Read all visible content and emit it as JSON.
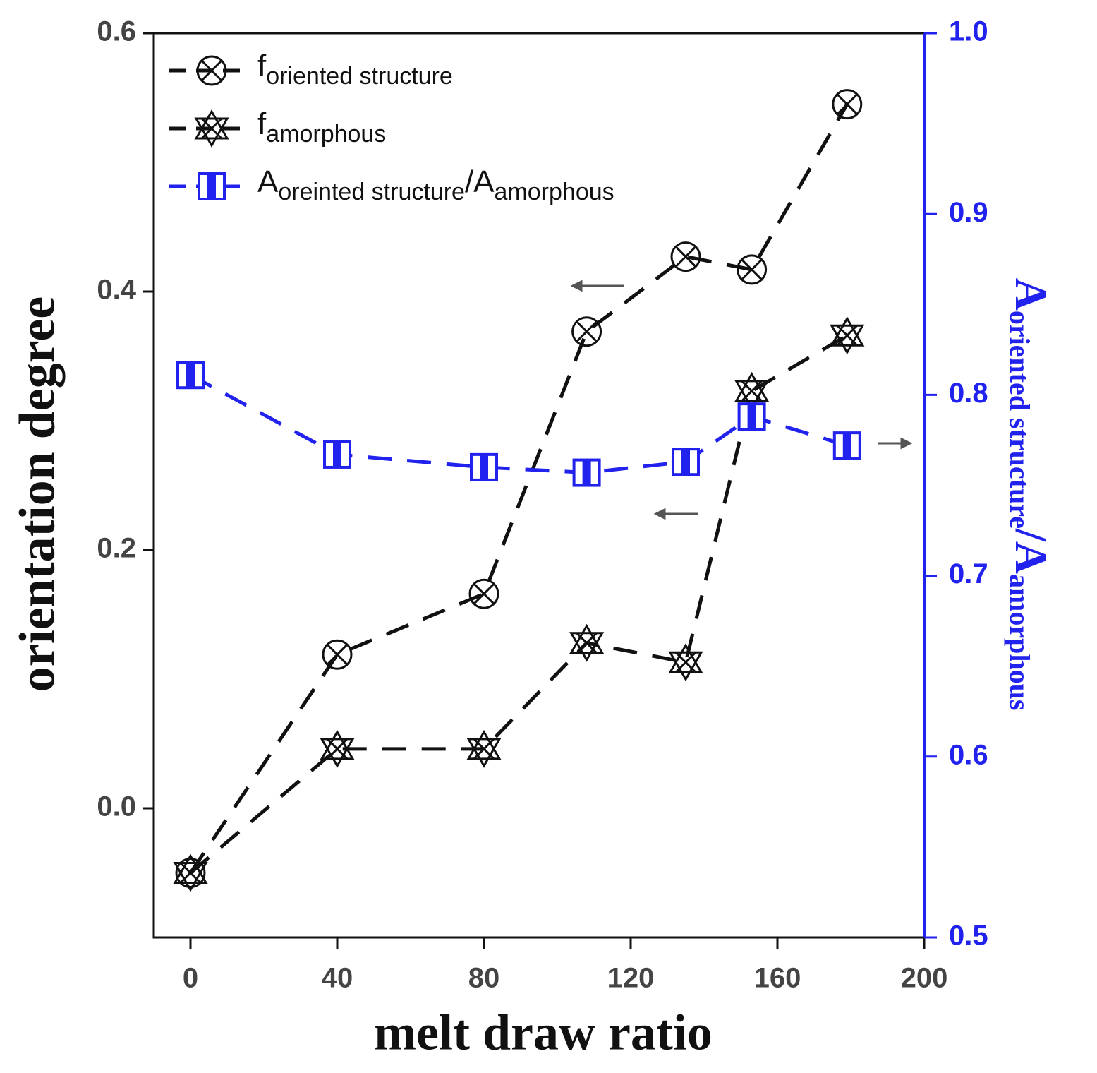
{
  "chart_data": {
    "type": "line",
    "xlabel": "melt draw ratio",
    "ylabel": "orientation degree",
    "y2label": [
      {
        "text": "A"
      },
      {
        "text": "oriented structure",
        "sub": true
      },
      {
        "text": "/A"
      },
      {
        "text": "amorphous",
        "sub": true
      }
    ],
    "x": [
      0,
      40,
      80,
      108,
      135,
      153,
      179
    ],
    "series": [
      {
        "name": [
          {
            "text": "f"
          },
          {
            "text": "oriented structure",
            "sub": true
          }
        ],
        "color": "#111111",
        "marker": "circle-x",
        "values": [
          -0.05,
          0.119,
          0.166,
          0.369,
          0.427,
          0.417,
          0.545
        ]
      },
      {
        "name": [
          {
            "text": "f"
          },
          {
            "text": "amorphous",
            "sub": true
          }
        ],
        "color": "#111111",
        "marker": "star-x",
        "values": [
          -0.05,
          0.046,
          0.046,
          0.128,
          0.113,
          0.323,
          0.366
        ]
      },
      {
        "name": [
          {
            "text": "A"
          },
          {
            "text": "oreinted structure",
            "sub": true
          },
          {
            "text": "/A"
          },
          {
            "text": "amorphous",
            "sub": true
          }
        ],
        "color": "#2222ee",
        "marker": "half-square",
        "axis": "y2",
        "values": [
          0.811,
          0.767,
          0.76,
          0.757,
          0.763,
          0.788,
          0.772
        ]
      }
    ],
    "xlim": [
      -10,
      200
    ],
    "xticks": [
      0,
      40,
      80,
      120,
      160,
      200
    ],
    "ylim": [
      -0.1,
      0.6
    ],
    "yticks": [
      {
        "value": 0,
        "label": "0.0"
      },
      0.2,
      0.4,
      0.6
    ],
    "y2lim": [
      0.5,
      1
    ],
    "y2ticks": [
      0.5,
      0.6,
      0.7,
      0.8,
      0.9,
      {
        "value": 1,
        "label": "1.0"
      }
    ],
    "y2color": "#2222ee",
    "legend": "upper left"
  }
}
